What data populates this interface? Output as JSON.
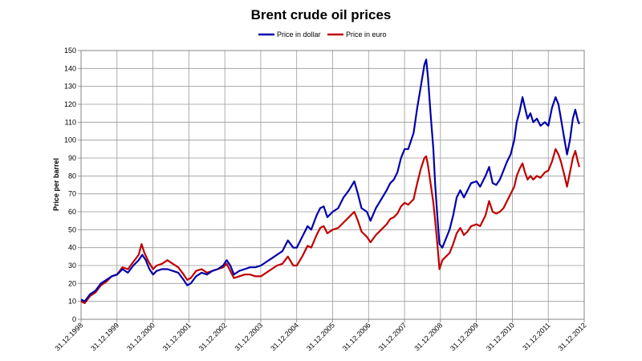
{
  "chart_data": {
    "type": "line",
    "title": "Brent crude oil prices",
    "ylabel": "Price per barrel",
    "xlabel": "",
    "ylim": [
      0,
      150
    ],
    "yticks": [
      0,
      10,
      20,
      30,
      40,
      50,
      60,
      70,
      80,
      90,
      100,
      110,
      120,
      130,
      140,
      150
    ],
    "xlim": [
      1998.997,
      2012.997
    ],
    "xticks": [
      {
        "label": "31.12.1998",
        "t": 1998.997
      },
      {
        "label": "31.12.1999",
        "t": 1999.997
      },
      {
        "label": "31.12.2000",
        "t": 2000.997
      },
      {
        "label": "31.12.2001",
        "t": 2001.997
      },
      {
        "label": "31.12.2002",
        "t": 2002.997
      },
      {
        "label": "31.12.2003",
        "t": 2003.997
      },
      {
        "label": "31.12.2004",
        "t": 2004.997
      },
      {
        "label": "31.12.2005",
        "t": 2005.997
      },
      {
        "label": "31.12.2006",
        "t": 2006.997
      },
      {
        "label": "31.12.2007",
        "t": 2007.997
      },
      {
        "label": "31.12.2008",
        "t": 2008.997
      },
      {
        "label": "31.12.2009",
        "t": 2009.997
      },
      {
        "label": "31.12.2010",
        "t": 2010.997
      },
      {
        "label": "31.12.2011",
        "t": 2011.997
      },
      {
        "label": "31.12.2012",
        "t": 2012.997
      }
    ],
    "grid": true,
    "legend_position": "top-center",
    "series": [
      {
        "name": "Price in dollar",
        "color": "#0000aa",
        "points": [
          [
            1999.0,
            11
          ],
          [
            1999.1,
            10
          ],
          [
            1999.25,
            14
          ],
          [
            1999.4,
            16
          ],
          [
            1999.55,
            20
          ],
          [
            1999.7,
            22
          ],
          [
            1999.85,
            24
          ],
          [
            2000.0,
            25
          ],
          [
            2000.15,
            28
          ],
          [
            2000.3,
            26
          ],
          [
            2000.45,
            30
          ],
          [
            2000.6,
            33
          ],
          [
            2000.7,
            36
          ],
          [
            2000.8,
            33
          ],
          [
            2000.9,
            28
          ],
          [
            2001.0,
            25
          ],
          [
            2001.1,
            27
          ],
          [
            2001.25,
            28
          ],
          [
            2001.4,
            28
          ],
          [
            2001.55,
            27
          ],
          [
            2001.7,
            26
          ],
          [
            2001.85,
            22
          ],
          [
            2001.95,
            19
          ],
          [
            2002.05,
            20
          ],
          [
            2002.2,
            24
          ],
          [
            2002.35,
            26
          ],
          [
            2002.5,
            25
          ],
          [
            2002.65,
            27
          ],
          [
            2002.8,
            28
          ],
          [
            2002.95,
            30
          ],
          [
            2003.05,
            33
          ],
          [
            2003.15,
            30
          ],
          [
            2003.25,
            25
          ],
          [
            2003.4,
            27
          ],
          [
            2003.55,
            28
          ],
          [
            2003.7,
            29
          ],
          [
            2003.85,
            29
          ],
          [
            2004.0,
            30
          ],
          [
            2004.15,
            32
          ],
          [
            2004.3,
            34
          ],
          [
            2004.45,
            36
          ],
          [
            2004.6,
            38
          ],
          [
            2004.75,
            44
          ],
          [
            2004.9,
            40
          ],
          [
            2005.0,
            40
          ],
          [
            2005.15,
            46
          ],
          [
            2005.3,
            52
          ],
          [
            2005.4,
            50
          ],
          [
            2005.55,
            58
          ],
          [
            2005.65,
            62
          ],
          [
            2005.75,
            63
          ],
          [
            2005.85,
            57
          ],
          [
            2006.0,
            60
          ],
          [
            2006.15,
            62
          ],
          [
            2006.3,
            68
          ],
          [
            2006.45,
            72
          ],
          [
            2006.6,
            77
          ],
          [
            2006.7,
            70
          ],
          [
            2006.8,
            62
          ],
          [
            2006.95,
            60
          ],
          [
            2007.05,
            55
          ],
          [
            2007.2,
            62
          ],
          [
            2007.35,
            67
          ],
          [
            2007.5,
            72
          ],
          [
            2007.6,
            76
          ],
          [
            2007.7,
            78
          ],
          [
            2007.8,
            82
          ],
          [
            2007.9,
            90
          ],
          [
            2008.0,
            95
          ],
          [
            2008.1,
            95
          ],
          [
            2008.25,
            104
          ],
          [
            2008.35,
            118
          ],
          [
            2008.45,
            130
          ],
          [
            2008.55,
            142
          ],
          [
            2008.6,
            145
          ],
          [
            2008.65,
            135
          ],
          [
            2008.72,
            115
          ],
          [
            2008.8,
            95
          ],
          [
            2008.85,
            75
          ],
          [
            2008.92,
            55
          ],
          [
            2008.97,
            42
          ],
          [
            2009.05,
            40
          ],
          [
            2009.15,
            45
          ],
          [
            2009.25,
            50
          ],
          [
            2009.35,
            58
          ],
          [
            2009.45,
            68
          ],
          [
            2009.55,
            72
          ],
          [
            2009.65,
            68
          ],
          [
            2009.75,
            72
          ],
          [
            2009.85,
            76
          ],
          [
            2010.0,
            77
          ],
          [
            2010.1,
            74
          ],
          [
            2010.25,
            80
          ],
          [
            2010.35,
            85
          ],
          [
            2010.45,
            76
          ],
          [
            2010.55,
            75
          ],
          [
            2010.65,
            78
          ],
          [
            2010.75,
            83
          ],
          [
            2010.85,
            88
          ],
          [
            2010.95,
            92
          ],
          [
            2011.05,
            100
          ],
          [
            2011.12,
            110
          ],
          [
            2011.2,
            116
          ],
          [
            2011.28,
            124
          ],
          [
            2011.35,
            118
          ],
          [
            2011.42,
            112
          ],
          [
            2011.5,
            115
          ],
          [
            2011.58,
            110
          ],
          [
            2011.68,
            112
          ],
          [
            2011.78,
            108
          ],
          [
            2011.9,
            110
          ],
          [
            2012.0,
            108
          ],
          [
            2012.1,
            118
          ],
          [
            2012.2,
            124
          ],
          [
            2012.28,
            120
          ],
          [
            2012.35,
            112
          ],
          [
            2012.45,
            100
          ],
          [
            2012.52,
            92
          ],
          [
            2012.6,
            100
          ],
          [
            2012.68,
            112
          ],
          [
            2012.75,
            117
          ],
          [
            2012.82,
            111
          ],
          [
            2012.86,
            109
          ]
        ]
      },
      {
        "name": "Price in euro",
        "color": "#c00000",
        "points": [
          [
            1999.0,
            10
          ],
          [
            1999.1,
            9
          ],
          [
            1999.25,
            13
          ],
          [
            1999.4,
            15
          ],
          [
            1999.55,
            19
          ],
          [
            1999.7,
            21
          ],
          [
            1999.85,
            24
          ],
          [
            2000.0,
            25
          ],
          [
            2000.15,
            29
          ],
          [
            2000.3,
            28
          ],
          [
            2000.45,
            32
          ],
          [
            2000.6,
            36
          ],
          [
            2000.68,
            42
          ],
          [
            2000.76,
            37
          ],
          [
            2000.88,
            32
          ],
          [
            2001.0,
            28
          ],
          [
            2001.1,
            30
          ],
          [
            2001.25,
            31
          ],
          [
            2001.4,
            33
          ],
          [
            2001.55,
            31
          ],
          [
            2001.7,
            29
          ],
          [
            2001.85,
            25
          ],
          [
            2001.95,
            22
          ],
          [
            2002.05,
            23
          ],
          [
            2002.2,
            27
          ],
          [
            2002.35,
            28
          ],
          [
            2002.5,
            26
          ],
          [
            2002.65,
            27
          ],
          [
            2002.8,
            28
          ],
          [
            2002.95,
            29
          ],
          [
            2003.05,
            31
          ],
          [
            2003.15,
            27
          ],
          [
            2003.25,
            23
          ],
          [
            2003.4,
            24
          ],
          [
            2003.55,
            25
          ],
          [
            2003.7,
            25
          ],
          [
            2003.85,
            24
          ],
          [
            2004.0,
            24
          ],
          [
            2004.15,
            26
          ],
          [
            2004.3,
            28
          ],
          [
            2004.45,
            30
          ],
          [
            2004.6,
            31
          ],
          [
            2004.75,
            35
          ],
          [
            2004.9,
            30
          ],
          [
            2005.0,
            30
          ],
          [
            2005.15,
            35
          ],
          [
            2005.3,
            41
          ],
          [
            2005.4,
            40
          ],
          [
            2005.55,
            47
          ],
          [
            2005.65,
            51
          ],
          [
            2005.75,
            52
          ],
          [
            2005.85,
            48
          ],
          [
            2006.0,
            50
          ],
          [
            2006.15,
            51
          ],
          [
            2006.3,
            54
          ],
          [
            2006.45,
            57
          ],
          [
            2006.6,
            60
          ],
          [
            2006.7,
            55
          ],
          [
            2006.8,
            49
          ],
          [
            2006.95,
            46
          ],
          [
            2007.05,
            43
          ],
          [
            2007.2,
            47
          ],
          [
            2007.35,
            50
          ],
          [
            2007.5,
            53
          ],
          [
            2007.6,
            56
          ],
          [
            2007.7,
            57
          ],
          [
            2007.8,
            59
          ],
          [
            2007.9,
            63
          ],
          [
            2008.0,
            65
          ],
          [
            2008.1,
            64
          ],
          [
            2008.25,
            67
          ],
          [
            2008.35,
            76
          ],
          [
            2008.45,
            84
          ],
          [
            2008.55,
            90
          ],
          [
            2008.6,
            91
          ],
          [
            2008.65,
            86
          ],
          [
            2008.72,
            76
          ],
          [
            2008.8,
            65
          ],
          [
            2008.85,
            55
          ],
          [
            2008.92,
            40
          ],
          [
            2008.97,
            28
          ],
          [
            2009.05,
            33
          ],
          [
            2009.15,
            35
          ],
          [
            2009.25,
            37
          ],
          [
            2009.35,
            42
          ],
          [
            2009.45,
            48
          ],
          [
            2009.55,
            51
          ],
          [
            2009.65,
            47
          ],
          [
            2009.75,
            49
          ],
          [
            2009.85,
            52
          ],
          [
            2010.0,
            53
          ],
          [
            2010.1,
            52
          ],
          [
            2010.25,
            58
          ],
          [
            2010.35,
            66
          ],
          [
            2010.45,
            60
          ],
          [
            2010.55,
            59
          ],
          [
            2010.65,
            60
          ],
          [
            2010.75,
            62
          ],
          [
            2010.85,
            66
          ],
          [
            2010.95,
            70
          ],
          [
            2011.05,
            74
          ],
          [
            2011.12,
            80
          ],
          [
            2011.2,
            84
          ],
          [
            2011.28,
            87
          ],
          [
            2011.35,
            82
          ],
          [
            2011.42,
            78
          ],
          [
            2011.5,
            80
          ],
          [
            2011.58,
            78
          ],
          [
            2011.68,
            80
          ],
          [
            2011.78,
            79
          ],
          [
            2011.9,
            82
          ],
          [
            2012.0,
            83
          ],
          [
            2012.1,
            88
          ],
          [
            2012.2,
            95
          ],
          [
            2012.28,
            92
          ],
          [
            2012.35,
            88
          ],
          [
            2012.45,
            80
          ],
          [
            2012.52,
            74
          ],
          [
            2012.6,
            82
          ],
          [
            2012.68,
            90
          ],
          [
            2012.75,
            94
          ],
          [
            2012.82,
            88
          ],
          [
            2012.86,
            85
          ]
        ]
      }
    ]
  }
}
